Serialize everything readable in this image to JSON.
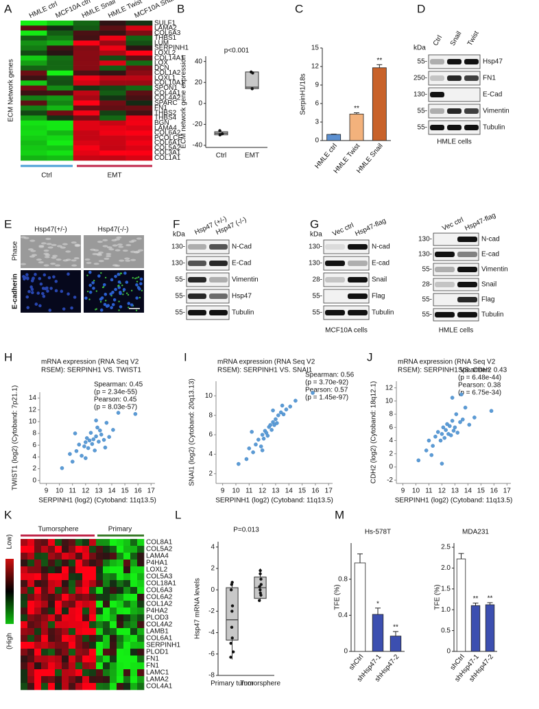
{
  "panel_letters": [
    "A",
    "B",
    "C",
    "D",
    "E",
    "F",
    "G",
    "H",
    "I",
    "J",
    "K",
    "L",
    "M"
  ],
  "heatmap_a": {
    "columns": [
      "HMLE ctrl",
      "MCF10A ctrl",
      "HMLE Snail",
      "HMLE Twist",
      "MCF10A Snail"
    ],
    "row_title": "ECM Network genes",
    "genes": [
      "SULF1",
      "LAMA2",
      "COL6A3",
      "THBS1",
      "LUM",
      "SERPINH1",
      "LOXL2",
      "COL14A1",
      "LOX",
      "DCN",
      "COL1A2",
      "LOXL1",
      "COL10A1",
      "SPON1",
      "COL4A1",
      "COL4A2",
      "SPARC",
      "FN1",
      "THBS2",
      "THBS4",
      "BGN",
      "LAMA4",
      "COL6A2",
      "PCOLCE",
      "COL6A1",
      "COL5A2",
      "COL3A1",
      "COL1A1"
    ],
    "groups": [
      "Ctrl",
      "EMT"
    ]
  },
  "image_e": {
    "columns": [
      "Hsp47(+/-)",
      "Hsp47(-/-)"
    ],
    "rows": [
      "Phase",
      "E-cadherin"
    ]
  },
  "blots": [
    {
      "kda": "kDa",
      "lanes": [
        "Ctrl",
        "Snail",
        "Twist"
      ],
      "markers": [
        "55-",
        "250-",
        "130-",
        "55-",
        "55-"
      ],
      "proteins": [
        "Hsp47",
        "FN1",
        "E-Cad",
        "Vimentin",
        "Tubulin"
      ],
      "caption": "HMLE cells"
    },
    {
      "kda": "kDa",
      "lanes": [
        "Hsp47 (+/-)",
        "Hsp47 (-/-)"
      ],
      "markers": [
        "130-",
        "130-",
        "55-",
        "55-",
        "55-"
      ],
      "proteins": [
        "N-Cad",
        "E-Cad",
        "Vimentin",
        "Hsp47",
        "Tubulin"
      ]
    },
    {
      "kda": "kDa",
      "lanes": [
        "Vec ctrl",
        "Hsp47-flag"
      ],
      "markers": [
        "130-",
        "130-",
        "28-",
        "55-",
        "55-"
      ],
      "proteins": [
        "N-cad",
        "E-cad",
        "Snail",
        "Flag",
        "Tubulin"
      ],
      "caption": "MCF10A cells"
    },
    {
      "lanes": [
        "Vec ctrl",
        "Hsp47-flag"
      ],
      "markers": [
        "130-",
        "130-",
        "55-",
        "28-",
        "55-",
        "55-"
      ],
      "proteins": [
        "N-cad",
        "E-cad",
        "Vimentin",
        "Snail",
        "Flag",
        "Tubulin"
      ],
      "caption": "HMLE cells"
    }
  ],
  "heatmap_k": {
    "groups": [
      "Tumorsphere",
      "Primary"
    ],
    "genes": [
      "COL8A1",
      "COL5A2",
      "LAMA4",
      "P4HA1",
      "LOXL2",
      "COL5A3",
      "COL18A1",
      "COL6A3",
      "COL6A2",
      "COL1A2",
      "P4HA2",
      "PLOD3",
      "COL4A2",
      "LAMB1",
      "COL6A1",
      "SERPINH1",
      "PLOD1",
      "FN1",
      "FN1",
      "LAMC1",
      "LAMA2",
      "COL4A1"
    ],
    "scale": [
      "Low)",
      "(High"
    ]
  },
  "chart_data": [
    {
      "type": "box",
      "title": "p<0.001",
      "ylabel": "ECM network gene expression",
      "categories": [
        "Ctrl",
        "EMT"
      ],
      "boxes": [
        {
          "min": -31,
          "q1": -30,
          "median": -28.5,
          "q3": -27,
          "max": -26,
          "points": [
            -26,
            -29,
            -30
          ]
        },
        {
          "min": 13,
          "q1": 14,
          "median": 15.5,
          "q3": 30,
          "max": 30.5,
          "points": [
            30,
            29,
            14
          ]
        }
      ],
      "color": "#c8c8c8",
      "ylim": [
        -42,
        45
      ],
      "yticks": [
        -40,
        -20,
        0,
        20,
        40
      ]
    },
    {
      "type": "bar",
      "ylabel": "SerpinH1/18s",
      "categories": [
        "HMLE ctrl",
        "HMLE Twist",
        "HMLE Snail"
      ],
      "values": [
        1,
        4.3,
        11.8
      ],
      "errors": [
        0.05,
        0.2,
        0.5
      ],
      "colors": [
        "#5b8fd0",
        "#f3b27c",
        "#c8622a"
      ],
      "significance": [
        null,
        "**",
        "**"
      ],
      "ylim": [
        0,
        15
      ],
      "yticks": [
        0,
        3,
        6,
        9,
        12,
        15
      ]
    },
    {
      "type": "scatter",
      "title": [
        "mRNA expression (RNA Seq V2",
        "RSEM): SERPINH1 VS. TWIST1"
      ],
      "stats": [
        "Spearman: 0.45",
        "(p = 2.34e-55)",
        "Pearson: 0.45",
        "(p = 8.03e-57)"
      ],
      "xlabel": "SERPINH1 (log2) (Cytoband: 11q13.5)",
      "ylabel": "TWIST1 (log2) (Cytoband: 7p21.1)",
      "color": "#5b9bd5",
      "x": [
        10.2,
        10.8,
        11.0,
        11.3,
        11.5,
        11.7,
        11.9,
        12.0,
        12.1,
        12.2,
        12.3,
        12.4,
        12.5,
        12.6,
        12.7,
        12.8,
        12.9,
        13.0,
        13.1,
        13.2,
        13.4,
        13.6,
        13.8,
        14.1,
        14.5,
        11.2,
        12.0,
        12.8,
        13.5,
        15.8
      ],
      "values": [
        2.1,
        4.5,
        3.2,
        5.0,
        6.1,
        4.2,
        5.8,
        6.5,
        7.2,
        5.5,
        6.8,
        8.1,
        6.2,
        7.0,
        5.1,
        7.5,
        9.0,
        6.6,
        8.5,
        7.8,
        6.9,
        9.8,
        7.4,
        8.6,
        11.5,
        8.0,
        3.8,
        10.2,
        5.6,
        11.3
      ],
      "xlim": [
        8.5,
        17.3
      ],
      "xticks": [
        9,
        10,
        11,
        12,
        13,
        14,
        15,
        16,
        17
      ],
      "ylim": [
        -0.5,
        15
      ],
      "yticks": [
        0,
        2,
        4,
        6,
        8,
        10,
        12,
        14
      ]
    },
    {
      "type": "scatter",
      "title": [
        "mRNA expression (RNA Seq V2",
        "RSEM): SERPINH1 VS. SNAI1"
      ],
      "stats": [
        "Spearman: 0.56",
        "(p = 3.70e-92)",
        "Pearson: 0.57",
        "(p = 1.45e-97)"
      ],
      "xlabel": "SERPINH1 (log2) (Cytoband: 11q13.5)",
      "ylabel": "SNAI1 (log2) (Cytoband: 20q13.13)",
      "color": "#5b9bd5",
      "x": [
        10.2,
        10.8,
        11.0,
        11.3,
        11.5,
        11.7,
        11.9,
        12.0,
        12.1,
        12.2,
        12.3,
        12.4,
        12.5,
        12.6,
        12.7,
        12.8,
        12.9,
        13.0,
        13.1,
        13.2,
        13.4,
        13.6,
        13.8,
        14.1,
        14.5,
        11.2,
        12.0,
        12.8,
        13.5,
        15.8
      ],
      "values": [
        3.0,
        3.5,
        4.6,
        4.2,
        5.0,
        5.5,
        4.8,
        6.0,
        5.6,
        6.4,
        6.2,
        5.9,
        6.8,
        7.0,
        6.5,
        7.3,
        7.0,
        7.6,
        7.2,
        8.0,
        8.3,
        8.1,
        8.6,
        8.9,
        9.5,
        6.3,
        4.4,
        8.5,
        9.0,
        10.3
      ],
      "xlim": [
        8.5,
        17.3
      ],
      "xticks": [
        9,
        10,
        11,
        12,
        13,
        14,
        15,
        16,
        17
      ],
      "ylim": [
        1,
        11.5
      ],
      "yticks": [
        2,
        4,
        6,
        8,
        10
      ]
    },
    {
      "type": "scatter",
      "title": [
        "mRNA expression (RNA Seq V2",
        "RSEM): SERPINH1 VS. CDH2"
      ],
      "stats": [
        "Spearman: 0.43",
        "(p = 6.48e-44)",
        "Pearson: 0.38",
        "(p = 6.75e-34)"
      ],
      "xlabel": "SERPINH1 (log2) (Cytoband: 11q13.5)",
      "ylabel": "CDH2 (log2) (Cytoband: 18q12.1)",
      "color": "#5b9bd5",
      "x": [
        10.2,
        10.8,
        11.0,
        11.3,
        11.5,
        11.7,
        11.9,
        12.0,
        12.1,
        12.2,
        12.3,
        12.4,
        12.5,
        12.6,
        12.7,
        12.8,
        12.9,
        13.0,
        13.1,
        13.2,
        13.4,
        13.6,
        13.8,
        14.1,
        14.5,
        11.2,
        12.0,
        12.8,
        13.5,
        15.8
      ],
      "values": [
        1.0,
        2.5,
        4.0,
        3.2,
        4.6,
        5.3,
        4.0,
        5.0,
        6.0,
        4.4,
        5.6,
        6.5,
        5.0,
        6.2,
        4.8,
        7.0,
        5.5,
        6.0,
        8.0,
        5.2,
        6.8,
        7.2,
        9.0,
        6.4,
        7.5,
        1.8,
        0.5,
        10.5,
        11.0,
        8.5
      ],
      "xlim": [
        8.5,
        17.3
      ],
      "xticks": [
        9,
        10,
        11,
        12,
        13,
        14,
        15,
        16,
        17
      ],
      "ylim": [
        -2.5,
        13
      ],
      "yticks": [
        -2,
        0,
        2,
        4,
        6,
        8,
        10,
        12
      ]
    },
    {
      "type": "box",
      "title": "P=0.013",
      "ylabel": "Hsp47 mRNA levels",
      "categories": [
        "Primary tumor",
        "Tumorsphere"
      ],
      "boxes": [
        {
          "min": -6.5,
          "q1": -4.7,
          "median": -2.8,
          "q3": 0.2,
          "max": 0.8,
          "points": [
            -6.3,
            -5.8,
            -5,
            -4.5,
            -3.5,
            -2,
            -1.5,
            0,
            0.5,
            0.7
          ]
        },
        {
          "min": -1,
          "q1": -0.8,
          "median": 0.2,
          "q3": 1.2,
          "max": 2.0,
          "points": [
            -1,
            -0.5,
            -0.3,
            0,
            0.3,
            0.5,
            1,
            1.5,
            1.8
          ]
        }
      ],
      "color": "#c8c8c8",
      "ylim": [
        -8,
        4.5
      ],
      "yticks": [
        -8,
        -6,
        -4,
        -2,
        0,
        2,
        4
      ]
    },
    {
      "type": "bar",
      "title": "Hs-578T",
      "ylabel": "TFE (%)",
      "categories": [
        "shCtrl",
        "shHsp47-1",
        "shHsp47-2"
      ],
      "values": [
        0.98,
        0.41,
        0.17
      ],
      "errors": [
        0.1,
        0.07,
        0.05
      ],
      "colors": [
        "#ffffff",
        "#3c4fb0",
        "#3c4fb0"
      ],
      "significance": [
        null,
        "*",
        "**"
      ],
      "ylim": [
        0,
        1.2
      ],
      "yticks": [
        0,
        0.4,
        0.8
      ]
    },
    {
      "type": "bar",
      "title": "MDA231",
      "ylabel": "TFE (%)",
      "categories": [
        "shCtrl",
        "shHsp47-1",
        "shHsp47-2"
      ],
      "values": [
        2.22,
        1.1,
        1.12
      ],
      "errors": [
        0.13,
        0.06,
        0.05
      ],
      "colors": [
        "#ffffff",
        "#3c4fb0",
        "#3c4fb0"
      ],
      "significance": [
        null,
        "**",
        "**"
      ],
      "ylim": [
        0,
        2.6
      ],
      "yticks": [
        0,
        0.5,
        {
          "value": 1,
          "label": "1.0"
        },
        1.5,
        {
          "value": 2,
          "label": "2.0"
        },
        2.5
      ]
    }
  ]
}
